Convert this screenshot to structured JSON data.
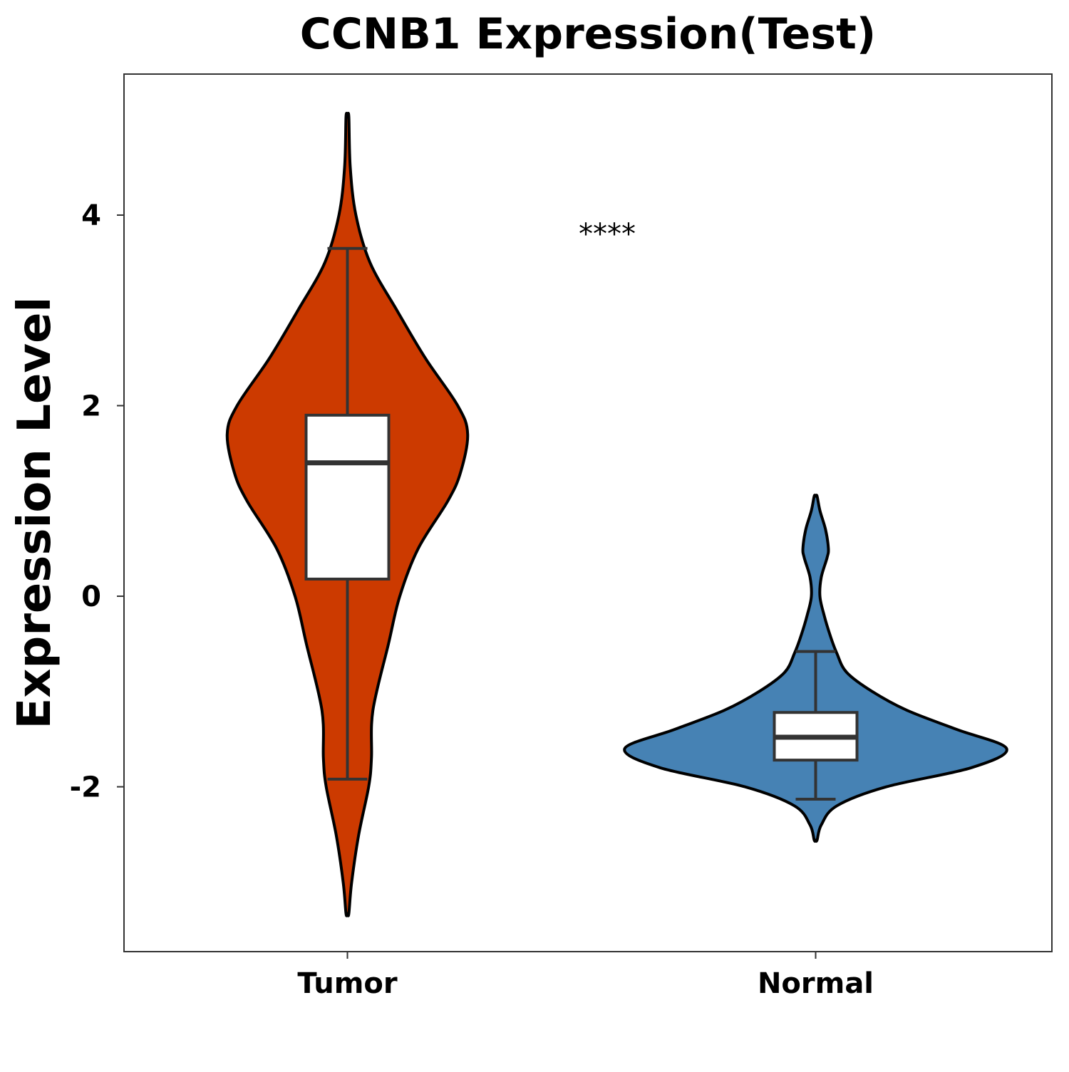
{
  "chart_data": {
    "type": "violin",
    "title": "CCNB1 Expression(Test)",
    "xlabel": "",
    "ylabel": "Expression Level",
    "ylim": [
      -3.73,
      5.48
    ],
    "yticks": [
      -2,
      0,
      2,
      4
    ],
    "ytick_labels": [
      "-2",
      "0",
      "2",
      "4"
    ],
    "grid": false,
    "significance_label": "****",
    "categories": [
      "Tumor",
      "Normal"
    ],
    "groups": [
      {
        "name": "Tumor",
        "color": "#CC3A00",
        "min": -3.33,
        "max": 5.03,
        "box": {
          "whisker_low": -1.92,
          "q1": 0.18,
          "median": 1.4,
          "q3": 1.9,
          "whisker_high": 3.65
        },
        "density": [
          [
            -3.33,
            0.01
          ],
          [
            -3.0,
            0.03
          ],
          [
            -2.5,
            0.08
          ],
          [
            -2.0,
            0.15
          ],
          [
            -1.7,
            0.17
          ],
          [
            -1.2,
            0.18
          ],
          [
            -0.5,
            0.29
          ],
          [
            0.0,
            0.37
          ],
          [
            0.5,
            0.5
          ],
          [
            1.0,
            0.71
          ],
          [
            1.3,
            0.8
          ],
          [
            1.7,
            0.85
          ],
          [
            2.0,
            0.78
          ],
          [
            2.5,
            0.55
          ],
          [
            3.0,
            0.35
          ],
          [
            3.5,
            0.16
          ],
          [
            4.0,
            0.06
          ],
          [
            4.5,
            0.02
          ],
          [
            5.03,
            0.01
          ]
        ]
      },
      {
        "name": "Normal",
        "color": "#4682B4",
        "min": -2.56,
        "max": 1.05,
        "box": {
          "whisker_low": -2.13,
          "q1": -1.72,
          "median": -1.48,
          "q3": -1.22,
          "whisker_high": -0.58
        },
        "density": [
          [
            -2.56,
            0.01
          ],
          [
            -2.4,
            0.04
          ],
          [
            -2.2,
            0.15
          ],
          [
            -2.0,
            0.5
          ],
          [
            -1.8,
            1.1
          ],
          [
            -1.6,
            1.35
          ],
          [
            -1.4,
            1.0
          ],
          [
            -1.2,
            0.65
          ],
          [
            -1.0,
            0.4
          ],
          [
            -0.8,
            0.22
          ],
          [
            -0.6,
            0.15
          ],
          [
            -0.4,
            0.1
          ],
          [
            -0.2,
            0.06
          ],
          [
            0.0,
            0.03
          ],
          [
            0.2,
            0.04
          ],
          [
            0.4,
            0.08
          ],
          [
            0.5,
            0.09
          ],
          [
            0.7,
            0.07
          ],
          [
            0.9,
            0.03
          ],
          [
            1.05,
            0.01
          ]
        ]
      }
    ]
  }
}
